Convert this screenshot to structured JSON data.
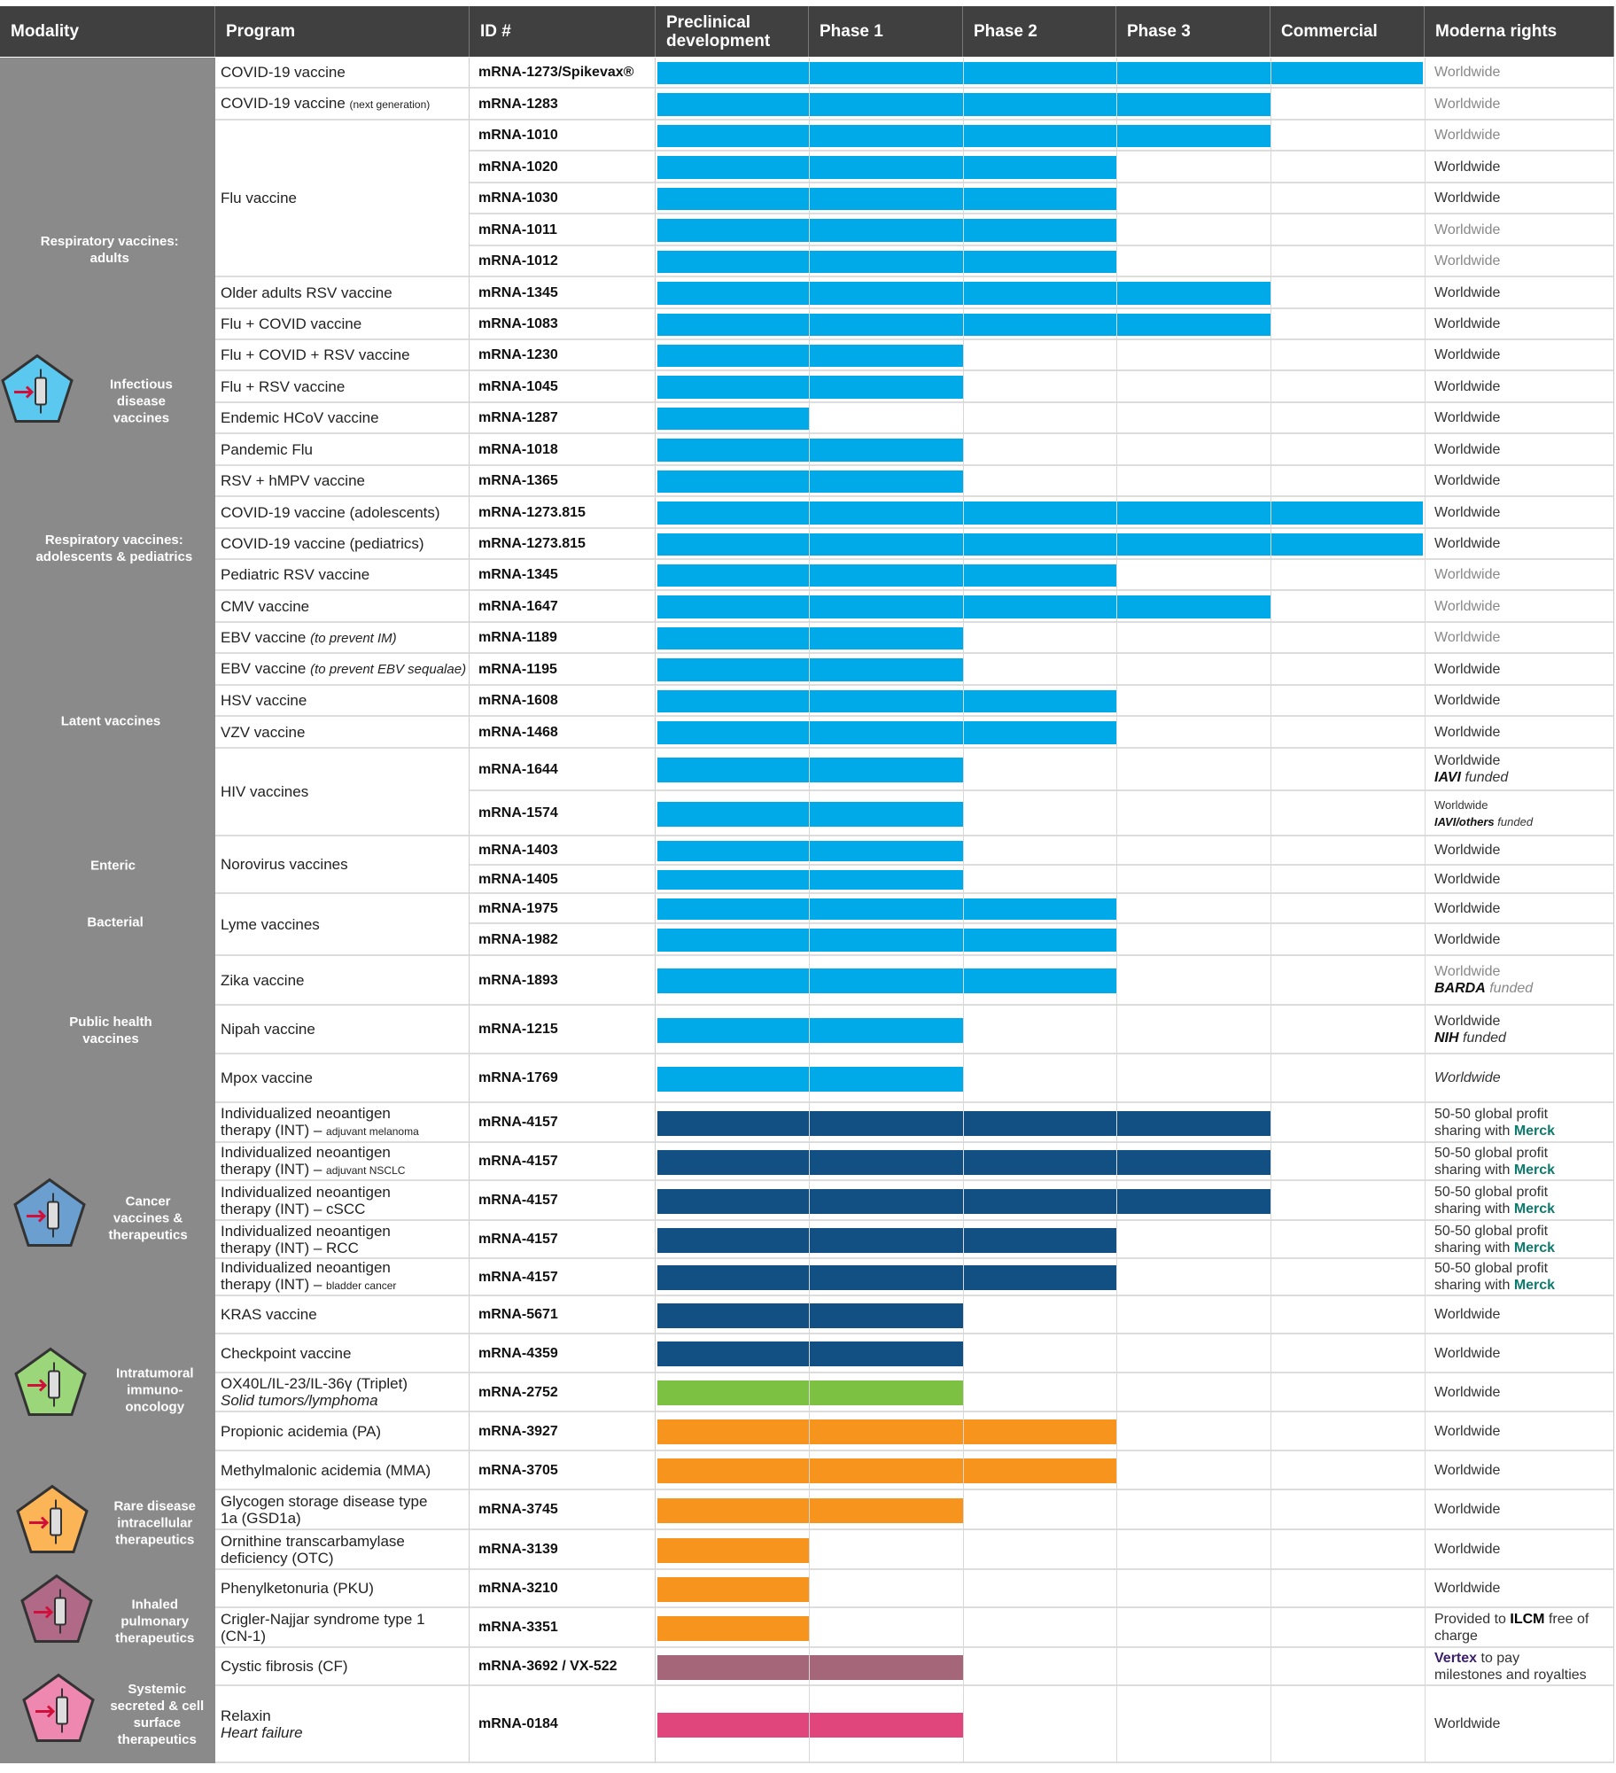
{
  "headers": [
    "Modality",
    "Program",
    "ID #",
    "Preclinical development",
    "Phase 1",
    "Phase 2",
    "Phase 3",
    "Commercial",
    "Moderna rights"
  ],
  "stages": [
    "Preclinical development",
    "Phase 1",
    "Phase 2",
    "Phase 3",
    "Commercial"
  ],
  "colors": {
    "header": "#404040",
    "modality_bg": "#8a8a8a",
    "infectious": "#00a9e8",
    "oncology": "#124f82",
    "intratumoral": "#7cc142",
    "rare": "#f7941d",
    "inhaled": "#a5667a",
    "systemic": "#e0457b",
    "merck": "#0e7a6e",
    "vertex": "#3b1f6b"
  },
  "modalities": [
    {
      "label": "Respiratory vaccines:\nadults"
    },
    {
      "label": "Infectious\ndisease\nvaccines",
      "icon": "syringe-icon",
      "color": "#5bc8f0"
    },
    {
      "label": "Respiratory vaccines:\nadolescents & pediatrics"
    },
    {
      "label": "Latent vaccines"
    },
    {
      "label": "Enteric"
    },
    {
      "label": "Bacterial"
    },
    {
      "label": "Public health\nvaccines"
    },
    {
      "label": "Cancer\nvaccines &\ntherapeutics",
      "icon": "multi-syringe-icon",
      "color": "#6a9fd0"
    },
    {
      "label": "Intratumoral\nimmuno-\noncology",
      "icon": "tumor-cell-icon",
      "color": "#9bd67a"
    },
    {
      "label": "Rare disease\nintracellular\ntherapeutics",
      "icon": "cell-icon",
      "color": "#fbb557"
    },
    {
      "label": "Inhaled\npulmonary\ntherapeutics",
      "icon": "lungs-icon",
      "color": "#b06a88"
    },
    {
      "label": "Systemic\nsecreted & cell\nsurface\ntherapeutics",
      "icon": "person-icon",
      "color": "#ef88b0"
    }
  ],
  "rows": [
    {
      "program": "COVID-19 vaccine",
      "id": "mRNA-1273/Spikevax®",
      "stage": 4,
      "color": "infectious",
      "rights": [
        "Worldwide"
      ],
      "muted": true
    },
    {
      "program": "COVID-19 vaccine",
      "program_small": "(next generation)",
      "id": "mRNA-1283",
      "stage": 3,
      "color": "infectious",
      "rights": [
        "Worldwide"
      ],
      "muted": true
    },
    {
      "program": "Flu vaccine",
      "span": 5,
      "id": "mRNA-1010",
      "stage": 3,
      "color": "infectious",
      "rights": [
        "Worldwide"
      ],
      "muted": true
    },
    {
      "id": "mRNA-1020",
      "stage": 2,
      "color": "infectious",
      "rights": [
        "Worldwide"
      ]
    },
    {
      "id": "mRNA-1030",
      "stage": 2,
      "color": "infectious",
      "rights": [
        "Worldwide"
      ]
    },
    {
      "id": "mRNA-1011",
      "stage": 2,
      "color": "infectious",
      "rights": [
        "Worldwide"
      ],
      "muted": true
    },
    {
      "id": "mRNA-1012",
      "stage": 2,
      "color": "infectious",
      "rights": [
        "Worldwide"
      ],
      "muted": true
    },
    {
      "program": "Older adults RSV vaccine",
      "id": "mRNA-1345",
      "stage": 3,
      "color": "infectious",
      "rights": [
        "Worldwide"
      ]
    },
    {
      "program": "Flu + COVID vaccine",
      "id": "mRNA-1083",
      "stage": 3,
      "color": "infectious",
      "rights": [
        "Worldwide"
      ]
    },
    {
      "program": "Flu + COVID + RSV vaccine",
      "id": "mRNA-1230",
      "stage": 1,
      "color": "infectious",
      "rights": [
        "Worldwide"
      ]
    },
    {
      "program": "Flu + RSV vaccine",
      "id": "mRNA-1045",
      "stage": 1,
      "color": "infectious",
      "rights": [
        "Worldwide"
      ]
    },
    {
      "program": "Endemic HCoV vaccine",
      "id": "mRNA-1287",
      "stage": 0,
      "color": "infectious",
      "rights": [
        "Worldwide"
      ]
    },
    {
      "program": "Pandemic Flu",
      "id": "mRNA-1018",
      "stage": 1,
      "color": "infectious",
      "rights": [
        "Worldwide"
      ]
    },
    {
      "program": "RSV + hMPV vaccine",
      "id": "mRNA-1365",
      "stage": 1,
      "color": "infectious",
      "rights": [
        "Worldwide"
      ]
    },
    {
      "program": "COVID-19 vaccine (adolescents)",
      "id": "mRNA-1273.815",
      "stage": 4,
      "color": "infectious",
      "rights": [
        "Worldwide"
      ]
    },
    {
      "program": "COVID-19 vaccine (pediatrics)",
      "id": "mRNA-1273.815",
      "stage": 4,
      "color": "infectious",
      "rights": [
        "Worldwide"
      ]
    },
    {
      "program": "Pediatric RSV vaccine",
      "id": "mRNA-1345",
      "stage": 2,
      "color": "infectious",
      "rights": [
        "Worldwide"
      ],
      "muted": true
    },
    {
      "program": "CMV vaccine",
      "id": "mRNA-1647",
      "stage": 3,
      "color": "infectious",
      "rights": [
        "Worldwide"
      ],
      "muted": true
    },
    {
      "program": "EBV vaccine",
      "program_italic": "(to prevent IM)",
      "id": "mRNA-1189",
      "stage": 1,
      "color": "infectious",
      "rights": [
        "Worldwide"
      ],
      "muted": true
    },
    {
      "program": "EBV vaccine",
      "program_italic": "(to prevent EBV sequalae)",
      "id": "mRNA-1195",
      "stage": 1,
      "color": "infectious",
      "rights": [
        "Worldwide"
      ]
    },
    {
      "program": "HSV vaccine",
      "id": "mRNA-1608",
      "stage": 2,
      "color": "infectious",
      "rights": [
        "Worldwide"
      ]
    },
    {
      "program": "VZV vaccine",
      "id": "mRNA-1468",
      "stage": 2,
      "color": "infectious",
      "rights": [
        "Worldwide"
      ]
    },
    {
      "program": "HIV vaccines",
      "span": 2,
      "id": "mRNA-1644",
      "stage": 1,
      "color": "infectious",
      "rights": [
        "Worldwide"
      ],
      "funder": "IAVI",
      "funded": "funded"
    },
    {
      "id": "mRNA-1574",
      "stage": 1,
      "color": "infectious",
      "rights": [
        "Worldwide"
      ],
      "funder": "IAVI/others",
      "funded": "funded",
      "small": true
    },
    {
      "program": "Norovirus vaccines",
      "span": 2,
      "id": "mRNA-1403",
      "stage": 1,
      "color": "infectious",
      "rights": [
        "Worldwide"
      ]
    },
    {
      "id": "mRNA-1405",
      "stage": 1,
      "color": "infectious",
      "rights": [
        "Worldwide"
      ]
    },
    {
      "program": "Lyme vaccines",
      "span": 2,
      "id": "mRNA-1975",
      "stage": 2,
      "color": "infectious",
      "rights": [
        "Worldwide"
      ]
    },
    {
      "id": "mRNA-1982",
      "stage": 2,
      "color": "infectious",
      "rights": [
        "Worldwide"
      ]
    },
    {
      "program": "Zika vaccine",
      "id": "mRNA-1893",
      "stage": 2,
      "color": "infectious",
      "rights": [
        "Worldwide"
      ],
      "funder": "BARDA",
      "funded": "funded",
      "muted": true
    },
    {
      "program": "Nipah vaccine",
      "id": "mRNA-1215",
      "stage": 1,
      "color": "infectious",
      "rights": [
        "Worldwide"
      ],
      "funder": "NIH",
      "funded": "funded"
    },
    {
      "program": "Mpox vaccine",
      "id": "mRNA-1769",
      "stage": 1,
      "color": "infectious",
      "rights": [
        "Worldwide"
      ],
      "italic_rights": true
    },
    {
      "program": "Individualized neoantigen\ntherapy (INT) –",
      "program_small": "adjuvant melanoma",
      "id": "mRNA-4157",
      "stage": 3,
      "color": "oncology",
      "rights": [
        "50-50 global profit",
        "sharing with"
      ],
      "partner": "Merck"
    },
    {
      "program": "Individualized neoantigen\ntherapy (INT) –",
      "program_small": "adjuvant NSCLC",
      "id": "mRNA-4157",
      "stage": 3,
      "color": "oncology",
      "rights": [
        "50-50 global profit",
        "sharing with"
      ],
      "partner": "Merck"
    },
    {
      "program": "Individualized neoantigen\ntherapy (INT) – cSCC",
      "id": "mRNA-4157",
      "stage": 3,
      "color": "oncology",
      "rights": [
        "50-50 global profit",
        "sharing with"
      ],
      "partner": "Merck"
    },
    {
      "program": "Individualized neoantigen\ntherapy (INT) – RCC",
      "id": "mRNA-4157",
      "stage": 2,
      "color": "oncology",
      "rights": [
        "50-50 global profit",
        "sharing with"
      ],
      "partner": "Merck"
    },
    {
      "program": "Individualized neoantigen\ntherapy (INT) –",
      "program_small": "bladder cancer",
      "id": "mRNA-4157",
      "stage": 2,
      "color": "oncology",
      "rights": [
        "50-50 global profit",
        "sharing with"
      ],
      "partner": "Merck"
    },
    {
      "program": "KRAS vaccine",
      "id": "mRNA-5671",
      "stage": 1,
      "color": "oncology",
      "rights": [
        "Worldwide"
      ]
    },
    {
      "program": "Checkpoint vaccine",
      "id": "mRNA-4359",
      "stage": 1,
      "color": "oncology",
      "rights": [
        "Worldwide"
      ]
    },
    {
      "program": "OX40L/IL-23/IL-36γ (Triplet)",
      "program_italic2": "Solid tumors/lymphoma",
      "id": "mRNA-2752",
      "stage": 1,
      "color": "intratumoral",
      "rights": [
        "Worldwide"
      ]
    },
    {
      "program": "Propionic acidemia (PA)",
      "id": "mRNA-3927",
      "stage": 2,
      "color": "rare",
      "rights": [
        "Worldwide"
      ]
    },
    {
      "program": "Methylmalonic acidemia (MMA)",
      "id": "mRNA-3705",
      "stage": 2,
      "color": "rare",
      "rights": [
        "Worldwide"
      ]
    },
    {
      "program": "Glycogen storage disease type\n1a (GSD1a)",
      "id": "mRNA-3745",
      "stage": 1,
      "color": "rare",
      "rights": [
        "Worldwide"
      ]
    },
    {
      "program": "Ornithine transcarbamylase\ndeficiency (OTC)",
      "id": "mRNA-3139",
      "stage": 0,
      "color": "rare",
      "rights": [
        "Worldwide"
      ]
    },
    {
      "program": "Phenylketonuria (PKU)",
      "id": "mRNA-3210",
      "stage": 0,
      "color": "rare",
      "rights": [
        "Worldwide"
      ]
    },
    {
      "program": "Crigler-Najjar syndrome type 1\n(CN-1)",
      "id": "mRNA-3351",
      "stage": 0,
      "color": "rare",
      "rights": [
        "Provided to",
        "free of",
        "charge"
      ],
      "rights_bold": "ILCM"
    },
    {
      "program": "Cystic fibrosis (CF)",
      "id": "mRNA-3692 / VX-522",
      "stage": 1,
      "color": "inhaled",
      "rights": [
        "to pay",
        "milestones and royalties"
      ],
      "rights_lead": "Vertex"
    },
    {
      "program": "Relaxin",
      "program_italic2": "Heart failure",
      "id": "mRNA-0184",
      "stage": 1,
      "color": "systemic",
      "rights": [
        "Worldwide"
      ]
    }
  ]
}
